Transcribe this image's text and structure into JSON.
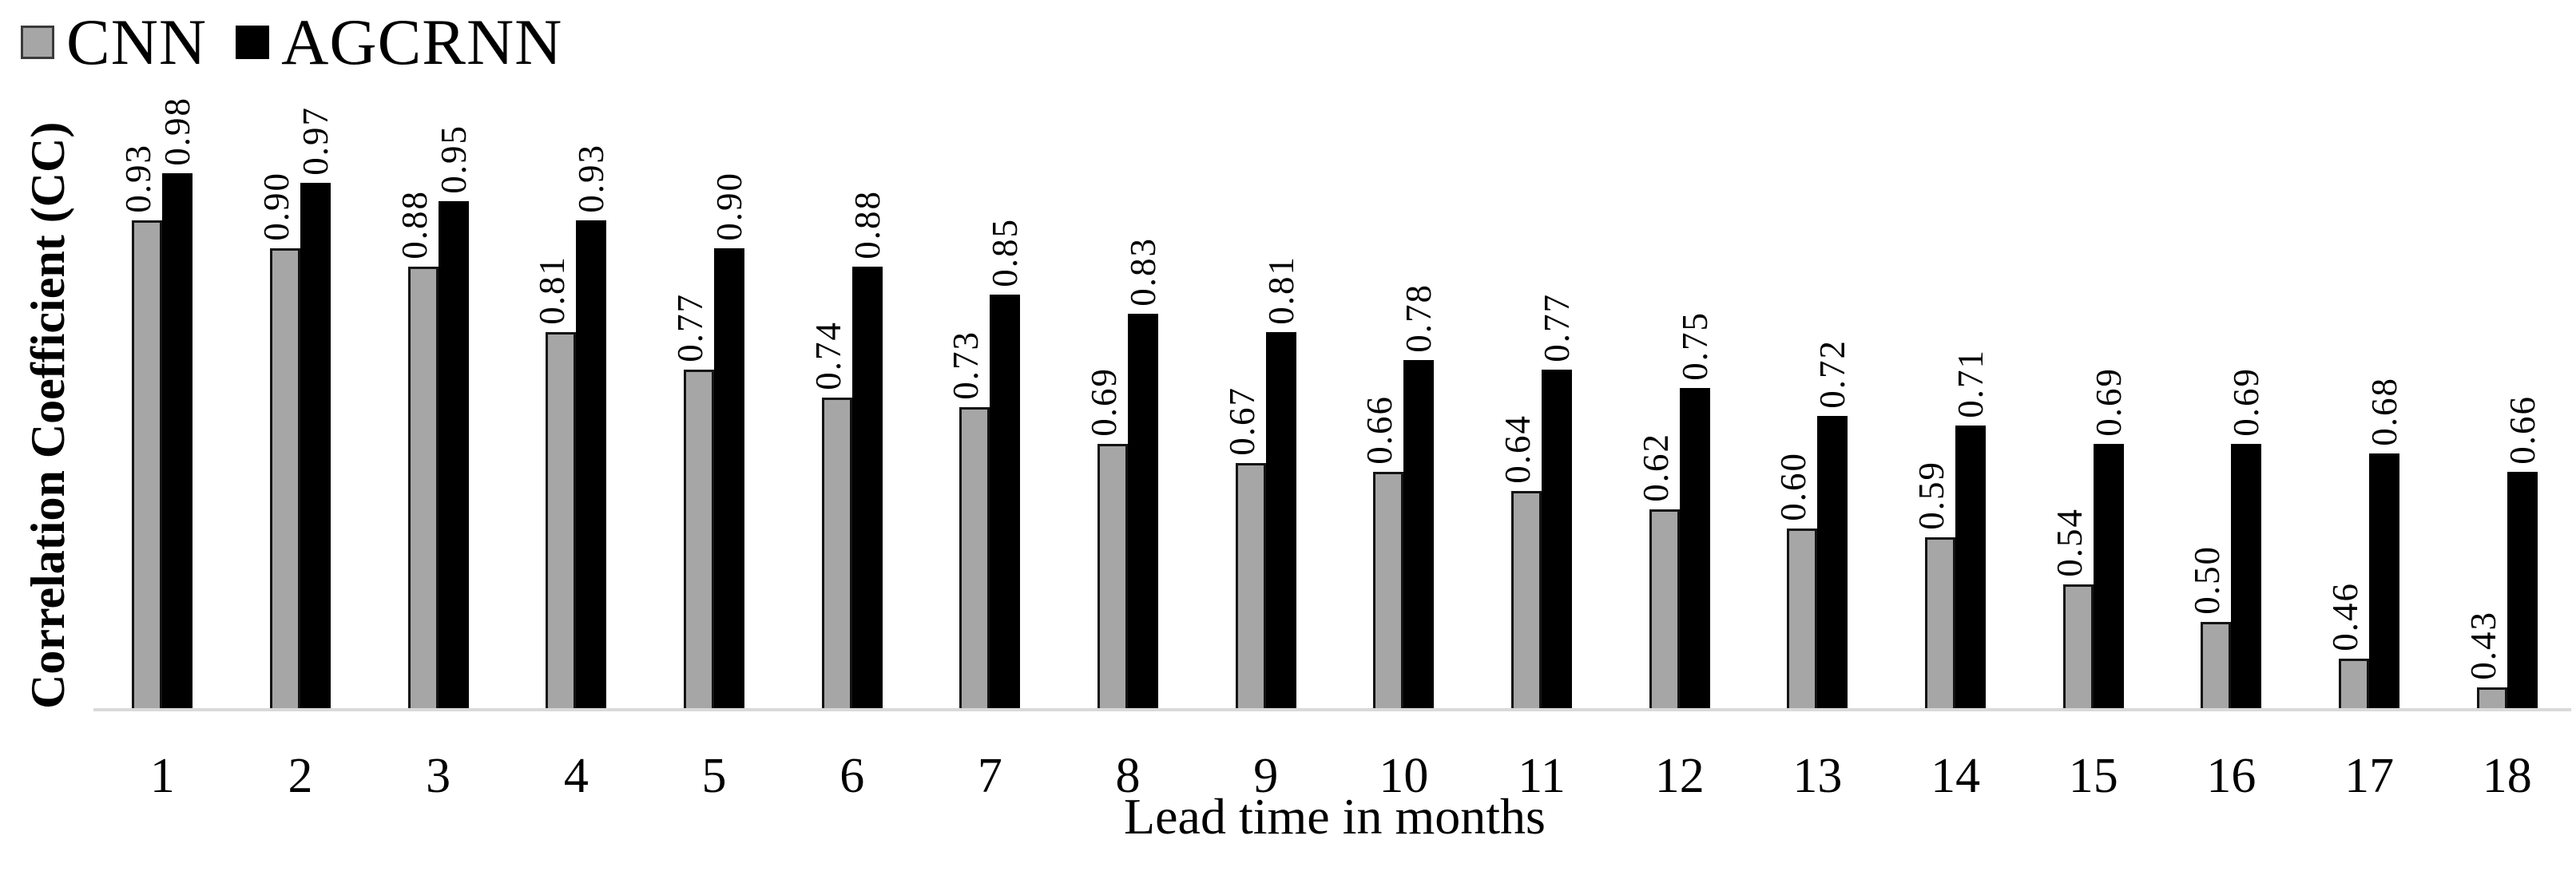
{
  "chart_data": {
    "type": "bar",
    "title": "",
    "xlabel": "Lead time in months",
    "ylabel": "Correlation Coefficient (CC)",
    "categories": [
      "1",
      "2",
      "3",
      "4",
      "5",
      "6",
      "7",
      "8",
      "9",
      "10",
      "11",
      "12",
      "13",
      "14",
      "15",
      "16",
      "17",
      "18"
    ],
    "series": [
      {
        "name": "CNN",
        "color": "#a6a6a6",
        "values": [
          0.93,
          0.9,
          0.88,
          0.81,
          0.77,
          0.74,
          0.73,
          0.69,
          0.67,
          0.66,
          0.64,
          0.62,
          0.6,
          0.59,
          0.54,
          0.5,
          0.46,
          0.43
        ]
      },
      {
        "name": "AGCRNN",
        "color": "#000000",
        "values": [
          0.98,
          0.97,
          0.95,
          0.93,
          0.9,
          0.88,
          0.85,
          0.83,
          0.81,
          0.78,
          0.77,
          0.75,
          0.72,
          0.71,
          0.69,
          0.69,
          0.68,
          0.66
        ]
      }
    ],
    "value_labels": "rotated 90° above bars, two decimals",
    "legend_position": "top-left",
    "grid": false,
    "y_ticks_visible": false,
    "ylim": [
      0.4,
      1.03
    ],
    "colors": {
      "axis_line": "#d9d9d9",
      "bar_outline": "#000000",
      "text": "#000000",
      "background": "#ffffff"
    }
  }
}
